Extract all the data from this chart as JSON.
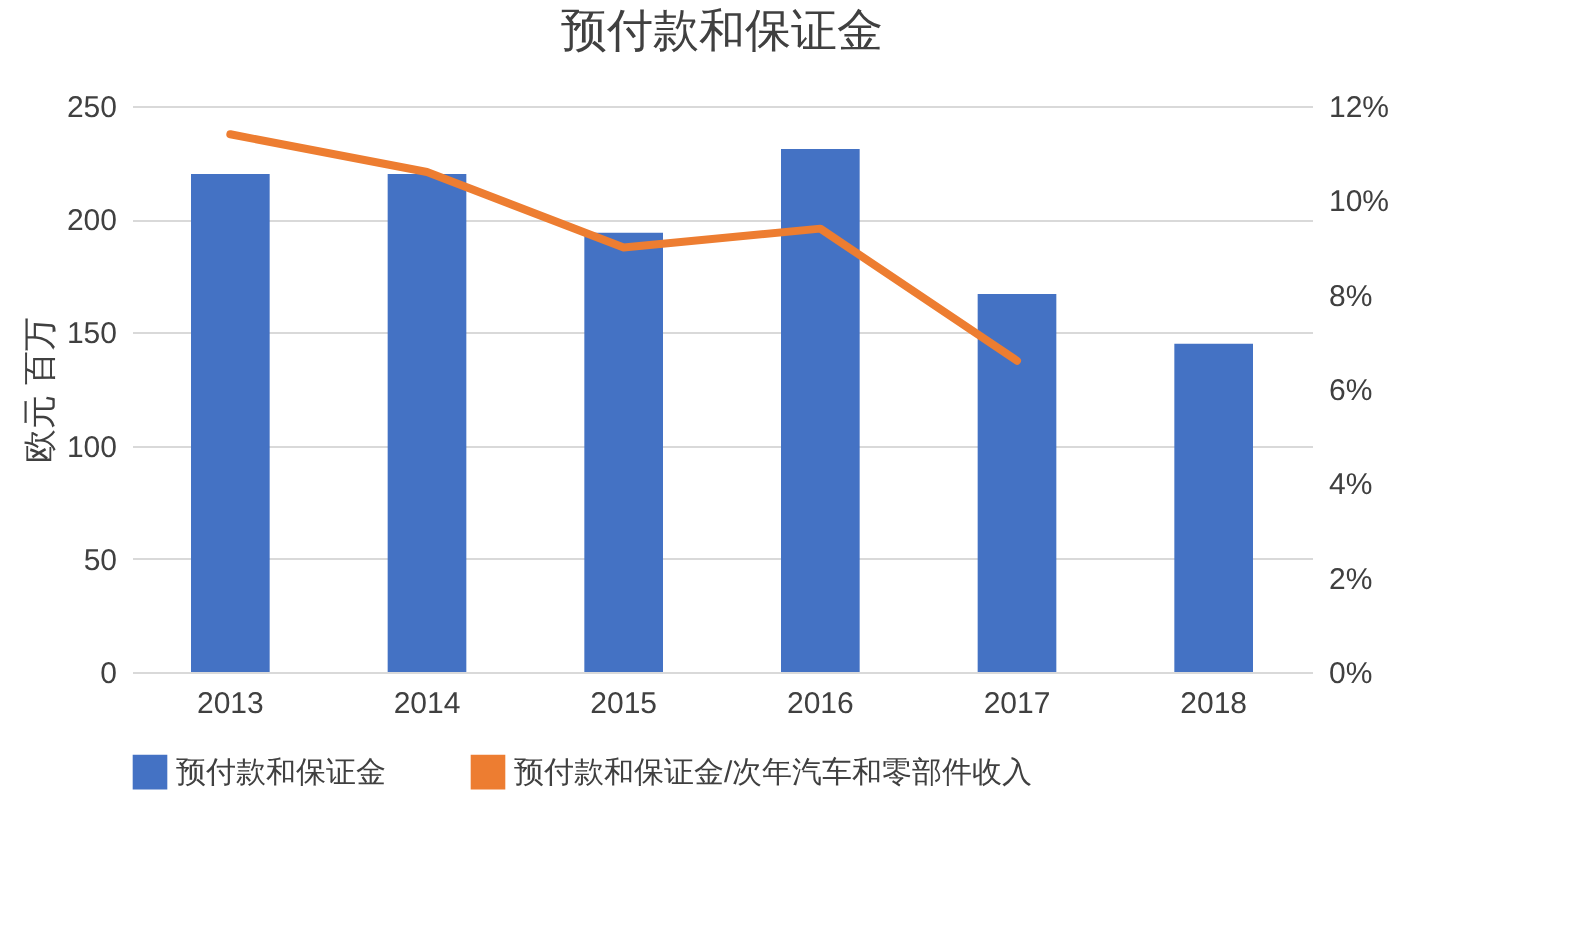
{
  "chart_data": {
    "type": "bar",
    "title": "预付款和保证金",
    "ylabel": "欧元 百万",
    "categories": [
      "2013",
      "2014",
      "2015",
      "2016",
      "2017",
      "2018"
    ],
    "series": [
      {
        "name": "预付款和保证金",
        "color": "#4472c4",
        "values": [
          220,
          220,
          194,
          231,
          167,
          145
        ]
      },
      {
        "name": "预付款和保证金/次年汽车和零部件收入",
        "type": "line",
        "axis": "y2",
        "color": "#ed7d31",
        "values": [
          11.4,
          10.6,
          9.0,
          9.4,
          6.6,
          null
        ]
      }
    ],
    "ylim": [
      0,
      250
    ],
    "yticks": [
      0,
      50,
      100,
      150,
      200,
      250
    ],
    "y2lim": [
      0,
      12
    ],
    "y2ticks": [
      {
        "value": 0,
        "label": "0%"
      },
      {
        "value": 2,
        "label": "2%"
      },
      {
        "value": 4,
        "label": "4%"
      },
      {
        "value": 6,
        "label": "6%"
      },
      {
        "value": 8,
        "label": "8%"
      },
      {
        "value": 10,
        "label": "10%"
      },
      {
        "value": 12,
        "label": "12%"
      }
    ],
    "grid": "y",
    "legend": "bottom",
    "marker": "none",
    "line_style": "solid"
  }
}
